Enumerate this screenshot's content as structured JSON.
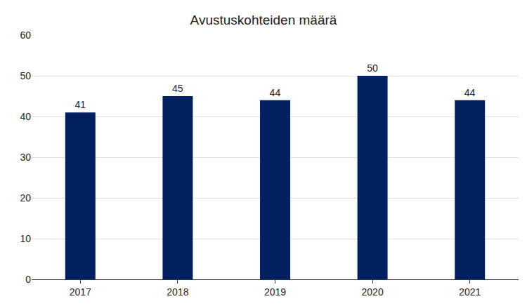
{
  "chart_data": {
    "type": "bar",
    "title": "Avustuskohteiden määrä",
    "categories": [
      "2017",
      "2018",
      "2019",
      "2020",
      "2021"
    ],
    "values": [
      41,
      45,
      44,
      50,
      44
    ],
    "color": "#002060",
    "ylim": [
      0,
      60
    ],
    "yticks": [
      0,
      10,
      20,
      30,
      40,
      50,
      60
    ],
    "grid": true,
    "data_labels": true
  }
}
